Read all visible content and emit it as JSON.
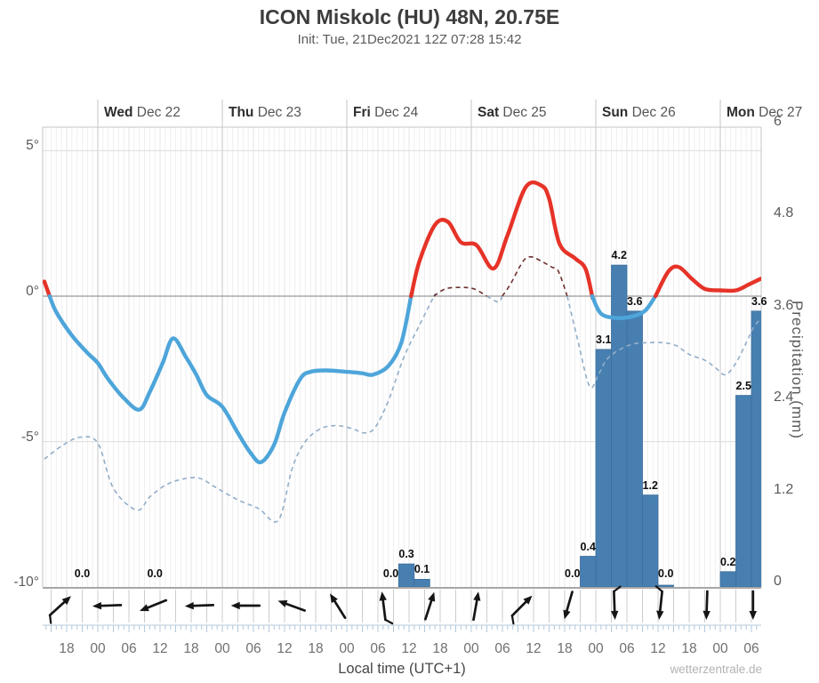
{
  "header": {
    "title": "ICON Miskolc (HU) 48N, 20.75E",
    "subtitle": "Init: Tue, 21Dec2021 12Z 07:28 15:42"
  },
  "watermark": "wetterzentrale.de",
  "days": [
    {
      "weekday": "Wed",
      "date": "Dec 22",
      "t": 24
    },
    {
      "weekday": "Thu",
      "date": "Dec 23",
      "t": 48
    },
    {
      "weekday": "Fri",
      "date": "Dec 24",
      "t": 72
    },
    {
      "weekday": "Sat",
      "date": "Dec 25",
      "t": 96
    },
    {
      "weekday": "Sun",
      "date": "Dec 26",
      "t": 120
    },
    {
      "weekday": "Mon",
      "date": "Dec 27",
      "t": 144
    }
  ],
  "axes": {
    "temp_ticks": [
      {
        "value": 5,
        "label": "5°"
      },
      {
        "value": 0,
        "label": "0°"
      },
      {
        "value": -5,
        "label": "-5°"
      },
      {
        "value": -10,
        "label": "-10°"
      }
    ],
    "precip_ticks": [
      {
        "value": 0,
        "label": "0"
      },
      {
        "value": 1.2,
        "label": "1.2"
      },
      {
        "value": 2.4,
        "label": "2.4"
      },
      {
        "value": 3.6,
        "label": "3.6"
      },
      {
        "value": 4.8,
        "label": "4.8"
      },
      {
        "value": 6,
        "label": "6"
      }
    ],
    "precip_axis_title": "Precipitation (mm)",
    "time_axis_title": "Local time (UTC+1)",
    "time_ticks": [
      {
        "t": 18,
        "label": "18"
      },
      {
        "t": 24,
        "label": "00"
      },
      {
        "t": 30,
        "label": "06"
      },
      {
        "t": 36,
        "label": "12"
      },
      {
        "t": 42,
        "label": "18"
      },
      {
        "t": 48,
        "label": "00"
      },
      {
        "t": 54,
        "label": "06"
      },
      {
        "t": 60,
        "label": "12"
      },
      {
        "t": 66,
        "label": "18"
      },
      {
        "t": 72,
        "label": "00"
      },
      {
        "t": 78,
        "label": "06"
      },
      {
        "t": 84,
        "label": "12"
      },
      {
        "t": 90,
        "label": "18"
      },
      {
        "t": 96,
        "label": "00"
      },
      {
        "t": 102,
        "label": "06"
      },
      {
        "t": 108,
        "label": "12"
      },
      {
        "t": 114,
        "label": "18"
      },
      {
        "t": 120,
        "label": "00"
      },
      {
        "t": 126,
        "label": "06"
      },
      {
        "t": 132,
        "label": "12"
      },
      {
        "t": 138,
        "label": "18"
      },
      {
        "t": 144,
        "label": "00"
      },
      {
        "t": 150,
        "label": "06"
      }
    ]
  },
  "chart_data": {
    "type": "meteogram (temperature line + dewpoint dashed line + 3h precipitation bars + wind arrows)",
    "x_unit": "hours since Tue 21 Dec 2021 00:00 local (UTC+1)",
    "x_range": [
      13.4,
      151.8
    ],
    "temp_axis_range_c": [
      -10,
      5.8
    ],
    "precip_axis_range_mm": [
      0,
      6
    ],
    "temperature_c": [
      [
        13.7,
        0.5
      ],
      [
        14.7,
        0
      ],
      [
        16,
        -0.55
      ],
      [
        19,
        -1.35
      ],
      [
        22,
        -1.95
      ],
      [
        24,
        -2.3
      ],
      [
        26,
        -2.85
      ],
      [
        29,
        -3.5
      ],
      [
        32,
        -3.9
      ],
      [
        34,
        -3.3
      ],
      [
        36.5,
        -2.3
      ],
      [
        38.5,
        -1.45
      ],
      [
        41,
        -2.1
      ],
      [
        43,
        -2.7
      ],
      [
        45,
        -3.4
      ],
      [
        48,
        -3.8
      ],
      [
        51,
        -4.7
      ],
      [
        53.5,
        -5.4
      ],
      [
        55.5,
        -5.7
      ],
      [
        58,
        -5.1
      ],
      [
        60,
        -4.0
      ],
      [
        63,
        -2.85
      ],
      [
        65,
        -2.6
      ],
      [
        68,
        -2.55
      ],
      [
        72,
        -2.6
      ],
      [
        75,
        -2.65
      ],
      [
        77,
        -2.7
      ],
      [
        80,
        -2.4
      ],
      [
        82.5,
        -1.6
      ],
      [
        84.4,
        0
      ],
      [
        86,
        1.2
      ],
      [
        89,
        2.45
      ],
      [
        91.5,
        2.55
      ],
      [
        94,
        1.85
      ],
      [
        97,
        1.75
      ],
      [
        100.3,
        0.95
      ],
      [
        103,
        2.1
      ],
      [
        106.5,
        3.75
      ],
      [
        109.5,
        3.8
      ],
      [
        111,
        3.35
      ],
      [
        113,
        1.8
      ],
      [
        116,
        1.3
      ],
      [
        118,
        0.95
      ],
      [
        119.3,
        0
      ],
      [
        121,
        -0.6
      ],
      [
        124,
        -0.75
      ],
      [
        127,
        -0.7
      ],
      [
        129.5,
        -0.5
      ],
      [
        131.5,
        0
      ],
      [
        134,
        0.85
      ],
      [
        136,
        1.0
      ],
      [
        138.5,
        0.6
      ],
      [
        141,
        0.25
      ],
      [
        144,
        0.2
      ],
      [
        147,
        0.2
      ],
      [
        149.5,
        0.4
      ],
      [
        151.8,
        0.6
      ]
    ],
    "dewpoint_c": [
      [
        13.7,
        -5.6
      ],
      [
        17,
        -5.15
      ],
      [
        20.5,
        -4.85
      ],
      [
        24,
        -5.05
      ],
      [
        27,
        -6.6
      ],
      [
        31.5,
        -7.35
      ],
      [
        34,
        -6.9
      ],
      [
        37,
        -6.5
      ],
      [
        40,
        -6.3
      ],
      [
        43.5,
        -6.25
      ],
      [
        47,
        -6.6
      ],
      [
        51,
        -7.0
      ],
      [
        55,
        -7.3
      ],
      [
        58.8,
        -7.7
      ],
      [
        61.5,
        -5.9
      ],
      [
        64,
        -5.0
      ],
      [
        67,
        -4.55
      ],
      [
        70,
        -4.45
      ],
      [
        73,
        -4.55
      ],
      [
        75.5,
        -4.7
      ],
      [
        77.5,
        -4.5
      ],
      [
        80,
        -3.6
      ],
      [
        83,
        -2.1
      ],
      [
        86,
        -1.0
      ],
      [
        88.8,
        0
      ],
      [
        91,
        0.25
      ],
      [
        94,
        0.3
      ],
      [
        96.5,
        0.25
      ],
      [
        99,
        0
      ],
      [
        101.2,
        -0.2
      ],
      [
        103.5,
        0.4
      ],
      [
        106,
        1.2
      ],
      [
        107.5,
        1.35
      ],
      [
        109.5,
        1.2
      ],
      [
        111.5,
        1.0
      ],
      [
        112.8,
        0.85
      ],
      [
        114.5,
        0
      ],
      [
        116.5,
        -1.5
      ],
      [
        118.8,
        -3.1
      ],
      [
        120.5,
        -2.7
      ],
      [
        122,
        -2.2
      ],
      [
        124,
        -1.9
      ],
      [
        127,
        -1.65
      ],
      [
        130,
        -1.6
      ],
      [
        133,
        -1.6
      ],
      [
        135.5,
        -1.7
      ],
      [
        138,
        -2.0
      ],
      [
        141,
        -2.2
      ],
      [
        143,
        -2.45
      ],
      [
        145,
        -2.7
      ],
      [
        147,
        -2.3
      ],
      [
        149,
        -1.6
      ],
      [
        150.5,
        -1.05
      ],
      [
        152,
        -0.75
      ]
    ],
    "precipitation_mm_3h": [
      {
        "t": 21,
        "v": 0,
        "label": "0.0"
      },
      {
        "t": 35,
        "v": 0,
        "label": "0.0"
      },
      {
        "t": 80.5,
        "v": 0,
        "label": "0.0"
      },
      {
        "t": 83.5,
        "v": 0.3,
        "label": "0.3"
      },
      {
        "t": 86.5,
        "v": 0.1,
        "label": "0.1"
      },
      {
        "t": 115.5,
        "v": 0,
        "label": "0.0"
      },
      {
        "t": 118.5,
        "v": 0.4,
        "label": "0.4"
      },
      {
        "t": 121.5,
        "v": 3.1,
        "label": "3.1"
      },
      {
        "t": 124.5,
        "v": 4.2,
        "label": "4.2"
      },
      {
        "t": 127.5,
        "v": 3.6,
        "label": "3.6"
      },
      {
        "t": 130.5,
        "v": 1.2,
        "label": "1.2"
      },
      {
        "t": 133.5,
        "v": 0,
        "label": "0.0",
        "trace": true
      },
      {
        "t": 145.5,
        "v": 0.2,
        "label": "0.2"
      },
      {
        "t": 148.5,
        "v": 2.5,
        "label": "2.5"
      },
      {
        "t": 151.5,
        "v": 3.6,
        "label": "3.6"
      }
    ],
    "wind_arrows": [
      {
        "t": 16.8,
        "dir": 48,
        "barb": 1
      },
      {
        "t": 25.7,
        "dir": 268,
        "barb": 0
      },
      {
        "t": 34.6,
        "dir": 248,
        "barb": 0
      },
      {
        "t": 43.5,
        "dir": 268,
        "barb": 0
      },
      {
        "t": 52.4,
        "dir": 270,
        "barb": 0
      },
      {
        "t": 61.3,
        "dir": 290,
        "barb": 0
      },
      {
        "t": 70.2,
        "dir": 328,
        "barb": 0
      },
      {
        "t": 79.1,
        "dir": 353,
        "barb": 1
      },
      {
        "t": 88,
        "dir": 18,
        "barb": 0
      },
      {
        "t": 96.9,
        "dir": 10,
        "barb": 0
      },
      {
        "t": 105.8,
        "dir": 45,
        "barb": 1
      },
      {
        "t": 114.7,
        "dir": 196,
        "barb": 0
      },
      {
        "t": 123.6,
        "dir": 178,
        "barb": -1
      },
      {
        "t": 132.5,
        "dir": 186,
        "barb": 1
      },
      {
        "t": 141.4,
        "dir": 182,
        "barb": 0
      },
      {
        "t": 150.3,
        "dir": 180,
        "barb": 0
      }
    ]
  },
  "colors": {
    "temp_above": "#e63328",
    "temp_below": "#4da5da",
    "dew_above": "#6d2f2f",
    "dew_below": "#92aec7",
    "bar_fill": "#477fb1",
    "bar_stroke": "#3c6e9c",
    "grid_day": "#c6c6c6",
    "grid_hour": "#efefef",
    "grid_6h": "#e4e4e4",
    "grid_temp": "#dddddd",
    "zero_line": "#999999",
    "axis_line": "#8a8a8a",
    "wind_sep": "#cccccc",
    "comb": "#b4c8da",
    "arrow": "#151515"
  }
}
